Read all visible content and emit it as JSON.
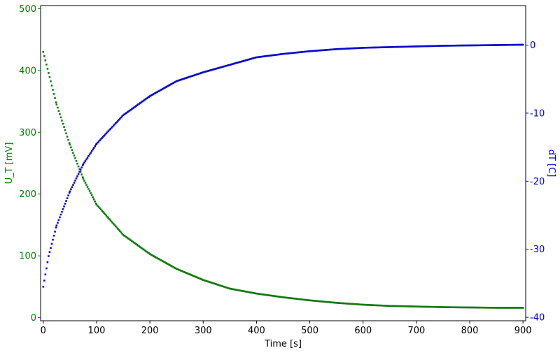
{
  "chart_data": {
    "type": "scatter",
    "title": "",
    "xlabel": "Time [s]",
    "ylabel_left": "U_T [mV]",
    "ylabel_right": "dT [C]",
    "xlim": [
      -5,
      905
    ],
    "ylim_left": [
      -5,
      505
    ],
    "ylim_right": [
      -40.5,
      5.8
    ],
    "x_ticks": [
      0,
      100,
      200,
      300,
      400,
      500,
      600,
      700,
      800,
      900
    ],
    "y_left_ticks": [
      0,
      100,
      200,
      300,
      400,
      500
    ],
    "y_right_ticks": [
      0,
      -10,
      -20,
      -30,
      -40
    ],
    "grid": false,
    "legend": "none",
    "colors": {
      "left_axis": "#008000",
      "right_axis": "#0000cc",
      "frame": "#000000"
    },
    "series": [
      {
        "axis": "left",
        "color": "#117a11",
        "marker": "square",
        "x": [
          0,
          25,
          50,
          75,
          100,
          150,
          200,
          250,
          300,
          350,
          400,
          450,
          500,
          550,
          600,
          650,
          700,
          750,
          800,
          850,
          900
        ],
        "y": [
          430,
          345,
          280,
          225,
          183,
          134,
          103,
          79,
          61,
          47,
          39,
          33,
          28,
          24,
          21,
          19,
          18,
          17,
          16.5,
          16,
          16
        ]
      },
      {
        "axis": "right",
        "color": "#0a0acc",
        "marker": "square",
        "x": [
          0,
          10,
          25,
          50,
          75,
          100,
          150,
          200,
          250,
          300,
          350,
          400,
          450,
          500,
          550,
          600,
          650,
          700,
          750,
          800,
          850,
          900
        ],
        "y": [
          -35.5,
          -31,
          -26.5,
          -21.5,
          -17.5,
          -14.5,
          -10.3,
          -7.5,
          -5.3,
          -4.0,
          -2.9,
          -1.8,
          -1.3,
          -0.9,
          -0.6,
          -0.4,
          -0.3,
          -0.2,
          -0.1,
          -0.05,
          0.0,
          0.05
        ]
      }
    ]
  }
}
